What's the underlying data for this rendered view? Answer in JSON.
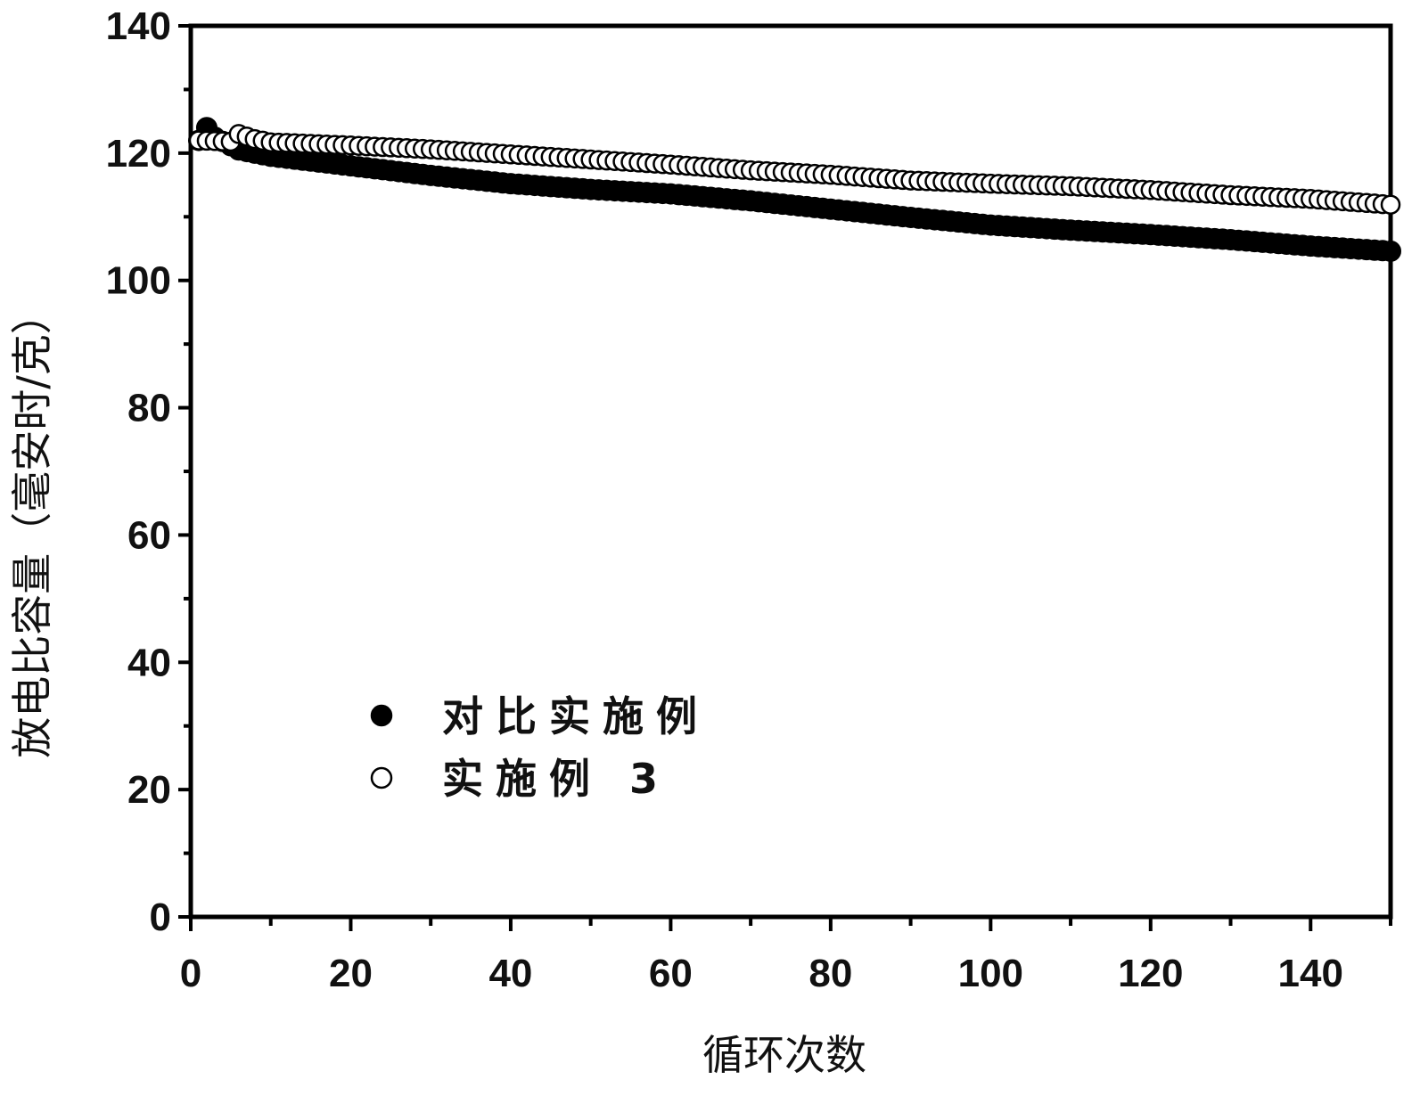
{
  "chart_data": {
    "type": "scatter",
    "title": "",
    "xlabel": "循环次数",
    "ylabel": "放电比容量（毫安时/克）",
    "xlim": [
      0,
      150
    ],
    "ylim": [
      0,
      140
    ],
    "x_ticks": [
      0,
      20,
      40,
      60,
      80,
      100,
      120,
      140
    ],
    "y_ticks": [
      0,
      20,
      40,
      60,
      80,
      100,
      120,
      140
    ],
    "grid": false,
    "legend_position": "lower-left",
    "series": [
      {
        "name": "对比实施例",
        "marker": "filled-circle",
        "color": "#000000",
        "anchors": [
          [
            1,
            122
          ],
          [
            2,
            124
          ],
          [
            3,
            122.5
          ],
          [
            6,
            120.5
          ],
          [
            10,
            119.5
          ],
          [
            20,
            118
          ],
          [
            30,
            116.5
          ],
          [
            40,
            115.2
          ],
          [
            50,
            114.3
          ],
          [
            60,
            113.6
          ],
          [
            70,
            112.5
          ],
          [
            80,
            111.2
          ],
          [
            90,
            109.9
          ],
          [
            100,
            108.7
          ],
          [
            110,
            107.9
          ],
          [
            120,
            107.2
          ],
          [
            130,
            106.4
          ],
          [
            140,
            105.4
          ],
          [
            150,
            104.6
          ]
        ]
      },
      {
        "name": "实施例 3",
        "marker": "open-circle",
        "color": "#000000",
        "anchors": [
          [
            1,
            122
          ],
          [
            5,
            121.8
          ],
          [
            6,
            123
          ],
          [
            8,
            122.2
          ],
          [
            10,
            121.7
          ],
          [
            20,
            121.2
          ],
          [
            30,
            120.6
          ],
          [
            40,
            119.8
          ],
          [
            50,
            119
          ],
          [
            60,
            118.2
          ],
          [
            70,
            117.3
          ],
          [
            80,
            116.6
          ],
          [
            90,
            115.7
          ],
          [
            100,
            115.2
          ],
          [
            110,
            114.8
          ],
          [
            120,
            114.2
          ],
          [
            130,
            113.4
          ],
          [
            140,
            112.8
          ],
          [
            150,
            111.9
          ]
        ]
      }
    ]
  },
  "colors": {
    "axis": "#000000",
    "text": "#111111",
    "background": "#ffffff"
  }
}
